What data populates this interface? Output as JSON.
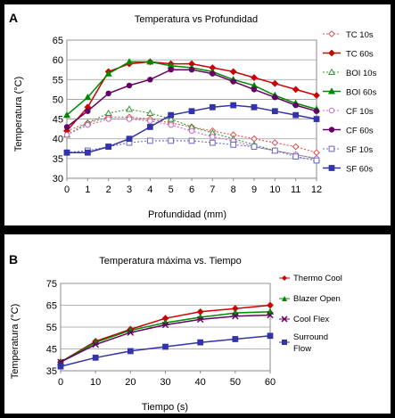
{
  "chart_data": [
    {
      "panel": "A",
      "type": "line",
      "title": "Temperatura vs Profundidad",
      "xlabel": "Profundidad (mm)",
      "ylabel": "Temperatura (°C)",
      "x": [
        0,
        1,
        2,
        3,
        4,
        5,
        6,
        7,
        8,
        9,
        10,
        11,
        12
      ],
      "xlim": [
        0,
        12
      ],
      "ylim": [
        30,
        65
      ],
      "yticks": [
        30,
        35,
        40,
        45,
        50,
        55,
        60,
        65
      ],
      "legend_position": "right",
      "series": [
        {
          "name": "TC 10s",
          "color": "#e05050",
          "dashed": true,
          "marker": "diamond-open",
          "values": [
            42,
            44,
            45.5,
            45.5,
            45,
            44,
            43,
            42,
            41,
            40,
            39,
            38,
            36.5
          ]
        },
        {
          "name": "TC 60s",
          "color": "#cc0000",
          "dashed": false,
          "marker": "diamond",
          "values": [
            42,
            48,
            57,
            59,
            59.5,
            59,
            59,
            58,
            57,
            55.5,
            54,
            52.5,
            51
          ]
        },
        {
          "name": "BOI 10s",
          "color": "#339933",
          "dashed": true,
          "marker": "triangle-open",
          "values": [
            41,
            44,
            46.5,
            47.5,
            46.5,
            45,
            43,
            41.5,
            40,
            38.5,
            37,
            36,
            35
          ]
        },
        {
          "name": "BOI 60s",
          "color": "#008800",
          "dashed": false,
          "marker": "triangle",
          "values": [
            46,
            50.5,
            56.5,
            59.5,
            59.5,
            58.5,
            58,
            57,
            55,
            53.5,
            51,
            49,
            47.5
          ]
        },
        {
          "name": "CF 10s",
          "color": "#cc66cc",
          "dashed": true,
          "marker": "circle-open",
          "values": [
            41,
            43.5,
            45,
            45,
            44.5,
            43.5,
            42,
            40.5,
            39.5,
            38,
            37,
            36,
            35
          ]
        },
        {
          "name": "CF 60s",
          "color": "#660066",
          "dashed": false,
          "marker": "circle",
          "values": [
            43,
            47,
            51.5,
            53.5,
            55,
            57.5,
            57.5,
            56.5,
            54.5,
            52.5,
            50.5,
            48.5,
            47
          ]
        },
        {
          "name": "SF 10s",
          "color": "#6666cc",
          "dashed": true,
          "marker": "square-open",
          "values": [
            36.5,
            37,
            38,
            39,
            39.5,
            39.5,
            39.5,
            39,
            38.5,
            38,
            37,
            35.5,
            34.5
          ]
        },
        {
          "name": "SF 60s",
          "color": "#3333aa",
          "dashed": false,
          "marker": "square",
          "values": [
            36.5,
            36.5,
            38,
            40,
            43,
            46,
            47,
            48,
            48.5,
            48,
            47,
            46,
            45
          ]
        }
      ]
    },
    {
      "panel": "B",
      "type": "line",
      "title": "Temperatura máxima vs. Tiempo",
      "xlabel": "Tiempo (s)",
      "ylabel": "Temperatura (°C)",
      "x": [
        0,
        10,
        20,
        30,
        40,
        50,
        60
      ],
      "xlim": [
        0,
        60
      ],
      "ylim": [
        35,
        75
      ],
      "yticks": [
        35,
        45,
        55,
        65,
        75
      ],
      "xticks": [
        0,
        10,
        20,
        30,
        40,
        50,
        60
      ],
      "legend_position": "right",
      "series": [
        {
          "name": "Thermo Cool",
          "color": "#cc0000",
          "marker": "diamond",
          "values": [
            39,
            48.5,
            54,
            59,
            62,
            63.5,
            65
          ]
        },
        {
          "name": "Blazer Open",
          "color": "#008800",
          "marker": "triangle",
          "values": [
            39,
            48,
            53.5,
            57,
            59.5,
            61.5,
            62
          ]
        },
        {
          "name": "Cool Flex",
          "color": "#660066",
          "marker": "x",
          "values": [
            39,
            47,
            52.5,
            56,
            58.5,
            60,
            60.5
          ]
        },
        {
          "name": "Surround Flow",
          "color": "#3333aa",
          "marker": "square",
          "values": [
            37,
            41,
            44,
            46,
            48,
            49.5,
            51
          ]
        }
      ]
    }
  ],
  "panels": {
    "A": {
      "letter": "A"
    },
    "B": {
      "letter": "B"
    }
  },
  "legendB": {
    "thermo": "Thermo Cool",
    "blazer": "Blazer Open",
    "coolflex": "Cool Flex",
    "surround_line1": "Surround",
    "surround_line2": "Flow"
  }
}
